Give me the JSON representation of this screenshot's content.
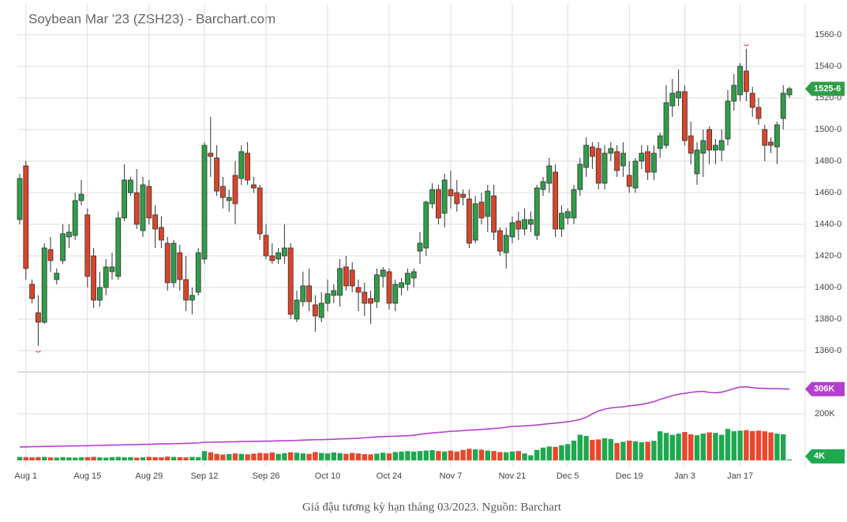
{
  "chart_data": {
    "type": "candlestick",
    "title": "Soybean Mar '23 (ZSH23) - Barchart.com",
    "caption": "Giá đậu tương kỳ hạn tháng 03/2023. Nguồn: Barchart",
    "last_label": "1525-6",
    "categories": [
      null,
      "Aug 1",
      null,
      null,
      null,
      null,
      null,
      null,
      null,
      null,
      null,
      "Aug 15",
      null,
      null,
      null,
      null,
      null,
      null,
      null,
      null,
      null,
      "Aug 29",
      null,
      null,
      null,
      null,
      null,
      null,
      null,
      null,
      "Sep 12",
      null,
      null,
      null,
      null,
      null,
      null,
      null,
      null,
      null,
      "Sep 26",
      null,
      null,
      null,
      null,
      null,
      null,
      null,
      null,
      null,
      "Oct 10",
      null,
      null,
      null,
      null,
      null,
      null,
      null,
      null,
      null,
      "Oct 24",
      null,
      null,
      null,
      null,
      null,
      null,
      null,
      null,
      null,
      "Nov 7",
      null,
      null,
      null,
      null,
      null,
      null,
      null,
      null,
      null,
      "Nov 21",
      null,
      null,
      null,
      null,
      null,
      null,
      null,
      null,
      "Dec 5",
      null,
      null,
      null,
      null,
      null,
      null,
      null,
      null,
      null,
      "Dec 19",
      null,
      null,
      null,
      null,
      null,
      null,
      null,
      null,
      "Jan 3",
      null,
      null,
      null,
      null,
      null,
      null,
      null,
      null,
      "Jan 17",
      null,
      null,
      null,
      null,
      null,
      null,
      null,
      null
    ],
    "open": [
      1443,
      1477,
      1402,
      1384,
      1378,
      1424,
      1405,
      1417,
      1432,
      1433,
      1455,
      1446,
      1420,
      1392,
      1400,
      1410,
      1407,
      1444,
      1460,
      1460,
      1436,
      1464,
      1446,
      1438,
      1428,
      1403,
      1422,
      1405,
      1392,
      1397,
      1418,
      1485,
      1482,
      1464,
      1455,
      1471,
      1469,
      1485,
      1465,
      1463,
      1433,
      1420,
      1418,
      1420,
      1425,
      1380,
      1391,
      1401,
      1389,
      1381,
      1390,
      1395,
      1395,
      1413,
      1411,
      1400,
      1397,
      1393,
      1391,
      1407,
      1410,
      1390,
      1400,
      1402,
      1406,
      1423,
      1425,
      1453,
      1462,
      1447,
      1462,
      1460,
      1459,
      1456,
      1430,
      1454,
      1445,
      1458,
      1436,
      1422,
      1432,
      1442,
      1437,
      1440,
      1433,
      1462,
      1466,
      1473,
      1437,
      1444,
      1444,
      1462,
      1476,
      1489,
      1488,
      1466,
      1485,
      1486,
      1477,
      1471,
      1463,
      1480,
      1486,
      1473,
      1488,
      1490,
      1515,
      1520,
      1524,
      1496,
      1472,
      1485,
      1500,
      1487,
      1487,
      1494,
      1518,
      1522,
      1537,
      1523,
      1514,
      1500,
      1492,
      1489,
      1507,
      1522
    ],
    "high": [
      1472,
      1480,
      1405,
      1395,
      1428,
      1432,
      1412,
      1440,
      1440,
      1460,
      1468,
      1450,
      1425,
      1410,
      1418,
      1422,
      1448,
      1478,
      1470,
      1475,
      1470,
      1468,
      1452,
      1445,
      1432,
      1430,
      1427,
      1420,
      1400,
      1425,
      1492,
      1508,
      1490,
      1470,
      1462,
      1480,
      1490,
      1492,
      1470,
      1465,
      1440,
      1428,
      1425,
      1440,
      1428,
      1398,
      1410,
      1412,
      1395,
      1397,
      1405,
      1402,
      1418,
      1420,
      1416,
      1405,
      1403,
      1398,
      1412,
      1413,
      1412,
      1405,
      1406,
      1412,
      1412,
      1435,
      1455,
      1466,
      1465,
      1472,
      1474,
      1468,
      1462,
      1462,
      1458,
      1460,
      1465,
      1465,
      1438,
      1438,
      1445,
      1448,
      1450,
      1448,
      1465,
      1470,
      1482,
      1478,
      1452,
      1450,
      1465,
      1482,
      1495,
      1492,
      1492,
      1490,
      1492,
      1490,
      1492,
      1480,
      1482,
      1490,
      1490,
      1490,
      1498,
      1528,
      1532,
      1538,
      1528,
      1505,
      1492,
      1500,
      1502,
      1494,
      1500,
      1525,
      1535,
      1542,
      1551,
      1527,
      1520,
      1503,
      1495,
      1505,
      1528,
      1527
    ],
    "low": [
      1440,
      1405,
      1390,
      1363,
      1377,
      1410,
      1402,
      1415,
      1425,
      1430,
      1452,
      1400,
      1387,
      1388,
      1395,
      1405,
      1405,
      1442,
      1458,
      1437,
      1432,
      1440,
      1425,
      1425,
      1398,
      1400,
      1398,
      1385,
      1383,
      1395,
      1415,
      1470,
      1458,
      1450,
      1448,
      1440,
      1465,
      1465,
      1460,
      1430,
      1418,
      1415,
      1415,
      1415,
      1380,
      1378,
      1388,
      1385,
      1372,
      1378,
      1385,
      1390,
      1388,
      1398,
      1397,
      1385,
      1382,
      1377,
      1387,
      1400,
      1386,
      1385,
      1395,
      1398,
      1400,
      1415,
      1420,
      1450,
      1440,
      1438,
      1450,
      1448,
      1452,
      1425,
      1428,
      1440,
      1435,
      1430,
      1420,
      1412,
      1428,
      1430,
      1433,
      1435,
      1430,
      1458,
      1460,
      1432,
      1432,
      1440,
      1440,
      1458,
      1470,
      1475,
      1462,
      1462,
      1480,
      1470,
      1470,
      1460,
      1460,
      1475,
      1468,
      1468,
      1482,
      1488,
      1508,
      1515,
      1490,
      1478,
      1465,
      1470,
      1478,
      1478,
      1480,
      1490,
      1512,
      1518,
      1518,
      1508,
      1503,
      1480,
      1485,
      1478,
      1500,
      1520
    ],
    "close": [
      1469,
      1412,
      1393,
      1378,
      1425,
      1417,
      1409,
      1434,
      1435,
      1455,
      1459,
      1407,
      1392,
      1400,
      1413,
      1413,
      1444,
      1468,
      1468,
      1440,
      1465,
      1444,
      1437,
      1430,
      1403,
      1428,
      1405,
      1392,
      1395,
      1422,
      1490,
      1483,
      1461,
      1457,
      1457,
      1453,
      1486,
      1468,
      1463,
      1434,
      1420,
      1417,
      1422,
      1425,
      1383,
      1392,
      1401,
      1391,
      1382,
      1390,
      1396,
      1398,
      1412,
      1401,
      1401,
      1397,
      1390,
      1390,
      1408,
      1411,
      1390,
      1402,
      1403,
      1409,
      1410,
      1428,
      1454,
      1462,
      1444,
      1468,
      1458,
      1453,
      1457,
      1428,
      1453,
      1444,
      1461,
      1435,
      1423,
      1433,
      1441,
      1437,
      1443,
      1443,
      1463,
      1467,
      1477,
      1437,
      1447,
      1448,
      1462,
      1478,
      1490,
      1483,
      1466,
      1485,
      1488,
      1474,
      1485,
      1464,
      1480,
      1485,
      1473,
      1485,
      1496,
      1517,
      1523,
      1524,
      1493,
      1485,
      1487,
      1493,
      1487,
      1490,
      1493,
      1518,
      1528,
      1540,
      1524,
      1514,
      1507,
      1490,
      1490,
      1503,
      1523,
      1525.75
    ],
    "up_color": "#2f9e48",
    "down_color": "#d9452b",
    "ylim": [
      1347,
      1579.5
    ],
    "yticks": [
      {
        "value": 1360,
        "label": "1360-0"
      },
      {
        "value": 1380,
        "label": "1380-0"
      },
      {
        "value": 1400,
        "label": "1400-0"
      },
      {
        "value": 1420,
        "label": "1420-0"
      },
      {
        "value": 1440,
        "label": "1440-0"
      },
      {
        "value": 1460,
        "label": "1460-0"
      },
      {
        "value": 1480,
        "label": "1480-0"
      },
      {
        "value": 1500,
        "label": "1500-0"
      },
      {
        "value": 1520,
        "label": "1520-0"
      },
      {
        "value": 1540,
        "label": "1540-0"
      },
      {
        "value": 1560,
        "label": "1560-0"
      }
    ],
    "volume": {
      "values": [
        15,
        14,
        13,
        14,
        15,
        13,
        12,
        14,
        13,
        12,
        13,
        14,
        15,
        13,
        12,
        14,
        15,
        13,
        14,
        12,
        13,
        15,
        14,
        13,
        16,
        15,
        14,
        13,
        15,
        14,
        40,
        35,
        28,
        25,
        27,
        30,
        28,
        26,
        29,
        32,
        30,
        34,
        28,
        31,
        35,
        33,
        30,
        28,
        36,
        32,
        30,
        34,
        31,
        28,
        32,
        30,
        27,
        26,
        29,
        33,
        30,
        36,
        38,
        40,
        38,
        40,
        42,
        44,
        40,
        38,
        42,
        38,
        45,
        50,
        48,
        46,
        42,
        40,
        36,
        35,
        38,
        40,
        30,
        22,
        45,
        55,
        60,
        58,
        65,
        70,
        85,
        110,
        105,
        88,
        90,
        95,
        92,
        75,
        80,
        85,
        82,
        78,
        80,
        84,
        125,
        118,
        110,
        115,
        122,
        112,
        108,
        115,
        120,
        118,
        110,
        135,
        125,
        128,
        130,
        126,
        128,
        125,
        120,
        115,
        112,
        4
      ],
      "last_label": "4K",
      "up_color": "#1fa84f",
      "down_color": "#e8482c"
    },
    "open_interest": {
      "values": [
        58,
        58,
        59,
        59,
        60,
        60,
        61,
        61,
        62,
        62,
        63,
        63,
        64,
        64,
        65,
        66,
        66,
        67,
        67,
        68,
        69,
        69,
        70,
        71,
        71,
        72,
        72,
        73,
        74,
        75,
        78,
        78,
        79,
        79,
        80,
        80,
        81,
        81,
        82,
        82,
        83,
        83,
        84,
        84,
        85,
        86,
        87,
        88,
        89,
        89,
        90,
        91,
        92,
        93,
        94,
        95,
        97,
        99,
        101,
        102,
        103,
        104,
        105,
        106,
        108,
        112,
        115,
        118,
        120,
        122,
        125,
        126,
        128,
        130,
        131,
        133,
        135,
        137,
        139,
        142,
        146,
        147,
        148,
        150,
        152,
        155,
        158,
        160,
        163,
        166,
        170,
        176,
        185,
        200,
        212,
        220,
        225,
        228,
        230,
        234,
        237,
        240,
        246,
        252,
        262,
        270,
        278,
        284,
        288,
        292,
        295,
        296,
        292,
        290,
        293,
        300,
        308,
        315,
        316,
        312,
        310,
        309,
        308,
        308,
        307,
        306
      ],
      "last_label": "306K",
      "color": "#b43fcf"
    },
    "y2lim": [
      0,
      376.3
    ],
    "y2ticks": [
      {
        "value": 200,
        "label": "200K"
      }
    ],
    "grid": true
  }
}
